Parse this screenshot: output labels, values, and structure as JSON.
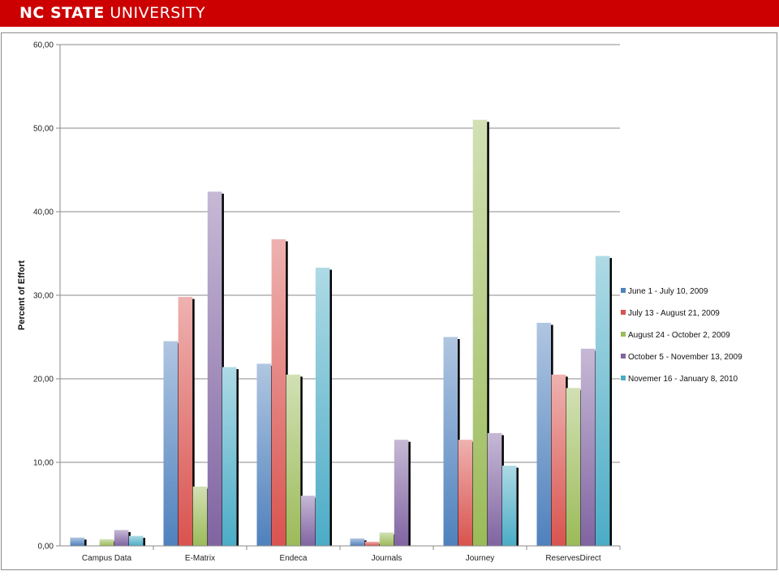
{
  "header": {
    "title_bold": "NC STATE",
    "title_rest": "UNIVERSITY",
    "background": "#cc0000"
  },
  "chart_data": {
    "type": "bar",
    "title": "",
    "xlabel": "",
    "ylabel": "Percent of Effort",
    "ylim": [
      0,
      60
    ],
    "yticks": [
      "0,00",
      "10,00",
      "20,00",
      "30,00",
      "40,00",
      "50,00",
      "60,00"
    ],
    "grid": true,
    "legend_position": "right",
    "categories": [
      "Campus Data",
      "E-Matrix",
      "Endeca",
      "Journals",
      "Journey",
      "ReservesDirect"
    ],
    "series": [
      {
        "name": "June 1 - July 10, 2009",
        "color": "#4f81bd",
        "values": [
          1.0,
          24.5,
          21.8,
          0.9,
          25.0,
          26.7
        ]
      },
      {
        "name": "July 13 - August 21, 2009",
        "color": "#d9534f",
        "values": [
          0.0,
          29.8,
          36.7,
          0.5,
          12.7,
          20.5
        ]
      },
      {
        "name": "August 24 - October 2, 2009",
        "color": "#9bbb59",
        "values": [
          0.8,
          7.1,
          20.5,
          1.6,
          51.0,
          18.9
        ]
      },
      {
        "name": "October 5 - November 13, 2009",
        "color": "#8064a2",
        "values": [
          1.9,
          42.4,
          6.0,
          12.7,
          13.5,
          23.6
        ]
      },
      {
        "name": "Novemer 16 - January 8, 2010",
        "color": "#4bacc6",
        "values": [
          1.2,
          21.4,
          33.3,
          0.0,
          9.6,
          34.7
        ]
      }
    ]
  }
}
